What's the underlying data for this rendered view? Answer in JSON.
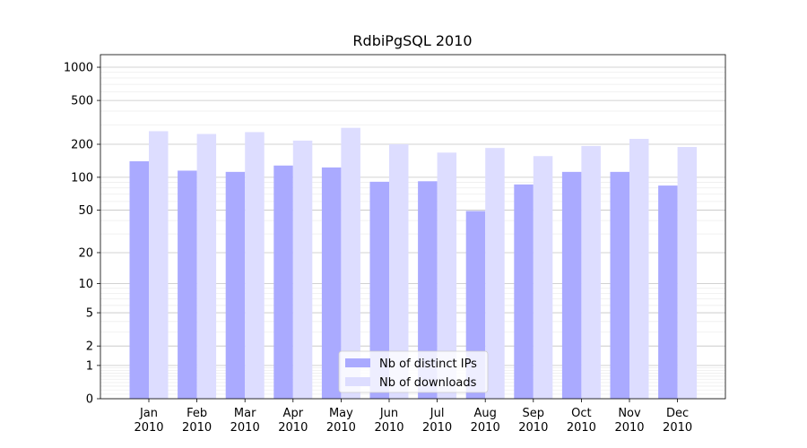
{
  "chart_data": {
    "type": "bar",
    "title": "RdbiPgSQL 2010",
    "xlabel": "",
    "ylabel": "",
    "yscale": "log1p",
    "ylim": [
      0,
      1300
    ],
    "yticks": [
      0,
      1,
      2,
      5,
      10,
      20,
      50,
      100,
      200,
      500,
      1000
    ],
    "grid": true,
    "legend_position": "bottom-center",
    "categories": [
      "Jan\n2010",
      "Feb\n2010",
      "Mar\n2010",
      "Apr\n2010",
      "May\n2010",
      "Jun\n2010",
      "Jul\n2010",
      "Aug\n2010",
      "Sep\n2010",
      "Oct\n2010",
      "Nov\n2010",
      "Dec\n2010"
    ],
    "series": [
      {
        "name": "Nb of distinct IPs",
        "color": "#aaaaff",
        "values": [
          140,
          115,
          112,
          128,
          123,
          91,
          92,
          49,
          86,
          112,
          112,
          84
        ]
      },
      {
        "name": "Nb of downloads",
        "color": "#ddddff",
        "values": [
          263,
          248,
          258,
          216,
          282,
          200,
          168,
          185,
          156,
          193,
          224,
          189
        ]
      }
    ]
  }
}
